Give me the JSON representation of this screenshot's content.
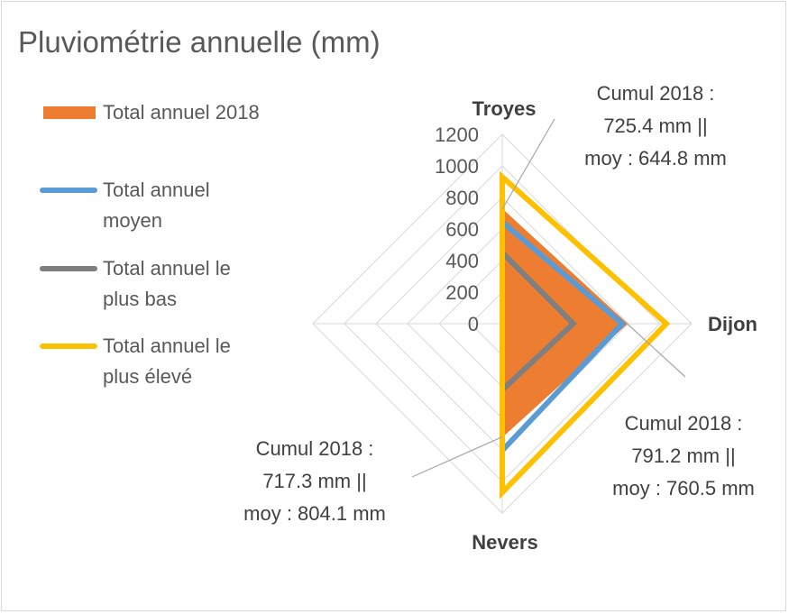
{
  "chart_data": {
    "type": "radar",
    "title": "Pluviométrie annuelle (mm)",
    "categories": [
      "Troyes",
      "Dijon",
      "Nevers"
    ],
    "rlim": [
      0,
      1200
    ],
    "ticks": [
      "0",
      "200",
      "400",
      "600",
      "800",
      "1000",
      "1200"
    ],
    "grid": true,
    "legend_position": "left",
    "series": [
      {
        "name": "Total annuel 2018",
        "kind": "area",
        "color": "#ed7d31",
        "values": [
          725.4,
          791.2,
          717.3
        ]
      },
      {
        "name": "Total annuel moyen",
        "kind": "line",
        "color": "#5b9bd5",
        "values": [
          644.8,
          760.5,
          804.1
        ]
      },
      {
        "name": "Total annuel le plus bas",
        "kind": "line",
        "color": "#7f7f7f",
        "values": [
          450,
          450,
          420
        ]
      },
      {
        "name": "Total annuel le plus élevé",
        "kind": "line",
        "color": "#ffc000",
        "values": [
          930,
          1040,
          1070
        ]
      }
    ],
    "annotations": [
      {
        "category": "Troyes",
        "lines": [
          "Cumul 2018 :",
          "725.4 mm ||",
          "moy : 644.8 mm"
        ]
      },
      {
        "category": "Dijon",
        "lines": [
          "Cumul 2018 :",
          "791.2 mm ||",
          "moy : 760.5 mm"
        ]
      },
      {
        "category": "Nevers",
        "lines": [
          "Cumul 2018 :",
          "717.3 mm ||",
          "moy : 804.1 mm"
        ]
      }
    ]
  },
  "legend": [
    {
      "lines": [
        "Total annuel 2018"
      ]
    },
    {
      "lines": [
        "Total annuel",
        "moyen"
      ]
    },
    {
      "lines": [
        "Total annuel le",
        "plus bas"
      ]
    },
    {
      "lines": [
        "Total annuel le",
        "plus élevé"
      ]
    }
  ]
}
